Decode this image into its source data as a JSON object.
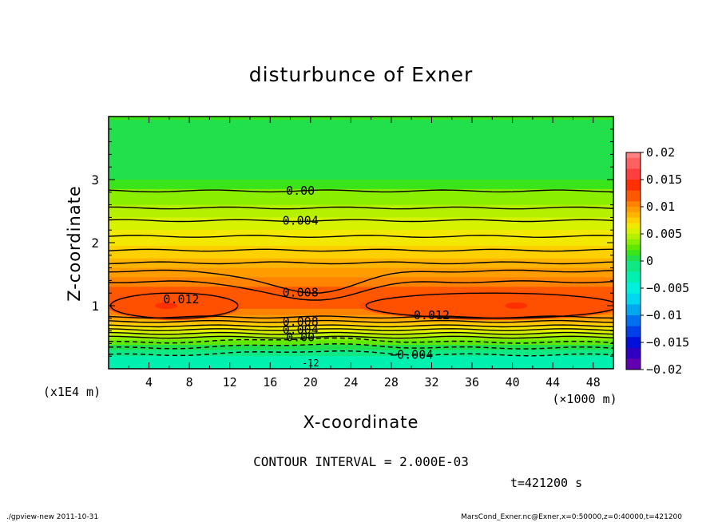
{
  "chart_data": {
    "type": "heatmap",
    "title": "disturbunce of Exner",
    "xlabel": "X-coordinate",
    "ylabel": "Z-coordinate",
    "x_unit": "(×1000 m)",
    "y_unit": "(x1E4 m)",
    "x_ticks": [
      4,
      8,
      12,
      16,
      20,
      24,
      28,
      32,
      36,
      40,
      44,
      48
    ],
    "y_ticks": [
      1,
      2,
      3
    ],
    "xlim": [
      0,
      50
    ],
    "ylim": [
      0,
      4
    ],
    "colorbar": {
      "ticks": [
        "0.02",
        "0.015",
        "0.01",
        "0.005",
        "0",
        "−0.005",
        "−0.01",
        "−0.015",
        "−0.02"
      ],
      "range": [
        -0.02,
        0.02
      ],
      "levels": [
        {
          "from": 0.019,
          "color": "#ff8080"
        },
        {
          "from": 0.017,
          "color": "#ff6060"
        },
        {
          "from": 0.015,
          "color": "#ff3f3f"
        },
        {
          "from": 0.013,
          "color": "#ff2f00"
        },
        {
          "from": 0.011,
          "color": "#ff5800"
        },
        {
          "from": 0.01,
          "color": "#ff8200"
        },
        {
          "from": 0.009,
          "color": "#ff9c00"
        },
        {
          "from": 0.008,
          "color": "#ffb400"
        },
        {
          "from": 0.007,
          "color": "#ffd000"
        },
        {
          "from": 0.006,
          "color": "#f3e800"
        },
        {
          "from": 0.005,
          "color": "#d6f200"
        },
        {
          "from": 0.004,
          "color": "#b4f000"
        },
        {
          "from": 0.003,
          "color": "#8aee00"
        },
        {
          "from": 0.002,
          "color": "#5fe800"
        },
        {
          "from": 0.001,
          "color": "#3ae41a"
        },
        {
          "from": 0.0,
          "color": "#22e04c"
        },
        {
          "from": -0.002,
          "color": "#10e884"
        },
        {
          "from": -0.004,
          "color": "#00f0b0"
        },
        {
          "from": -0.006,
          "color": "#00f0dc"
        },
        {
          "from": -0.008,
          "color": "#00d8f0"
        },
        {
          "from": -0.01,
          "color": "#00a8f0"
        },
        {
          "from": -0.012,
          "color": "#0070f0"
        },
        {
          "from": -0.014,
          "color": "#0040e8"
        },
        {
          "from": -0.016,
          "color": "#0010d8"
        },
        {
          "from": -0.018,
          "color": "#3000c0"
        },
        {
          "from": -0.02,
          "color": "#6000b0"
        }
      ]
    },
    "bands": [
      {
        "z": 3.95,
        "value": 0.001
      },
      {
        "z": 3.4,
        "value": 0.0008
      },
      {
        "z": 3.0,
        "value": 0.0
      },
      {
        "z": 2.85,
        "value": 0.0015
      },
      {
        "z": 2.6,
        "value": 0.003
      },
      {
        "z": 2.4,
        "value": 0.004
      },
      {
        "z": 2.2,
        "value": 0.005
      },
      {
        "z": 1.95,
        "value": 0.006
      },
      {
        "z": 1.75,
        "value": 0.007
      },
      {
        "z": 1.6,
        "value": 0.008
      },
      {
        "z": 1.45,
        "value": 0.009
      },
      {
        "z": 1.3,
        "value": 0.01
      },
      {
        "z": 1.15,
        "value": 0.011
      },
      {
        "z": 0.95,
        "value": 0.012
      },
      {
        "z": 0.85,
        "value": 0.01
      },
      {
        "z": 0.78,
        "value": 0.009
      },
      {
        "z": 0.72,
        "value": 0.008
      },
      {
        "z": 0.66,
        "value": 0.007
      },
      {
        "z": 0.6,
        "value": 0.006
      },
      {
        "z": 0.55,
        "value": 0.005
      },
      {
        "z": 0.5,
        "value": 0.004
      },
      {
        "z": 0.45,
        "value": 0.003
      },
      {
        "z": 0.38,
        "value": 0.002
      },
      {
        "z": 0.3,
        "value": 0.0
      },
      {
        "z": 0.2,
        "value": -0.002
      },
      {
        "z": 0.12,
        "value": -0.004
      }
    ],
    "contours": [
      {
        "z": 2.82,
        "style": "solid",
        "label": "0.00",
        "label_x": 19
      },
      {
        "z": 2.55,
        "style": "solid"
      },
      {
        "z": 2.35,
        "style": "solid",
        "label": "0.004",
        "label_x": 19
      },
      {
        "z": 2.1,
        "style": "solid"
      },
      {
        "z": 1.88,
        "style": "solid"
      },
      {
        "z": 1.68,
        "style": "solid"
      },
      {
        "z": 1.55,
        "style": "solid",
        "label": "0.008",
        "label_x": 19,
        "dip": 0.35
      },
      {
        "z": 1.38,
        "style": "solid",
        "dip": 0.3
      },
      {
        "z": 0.82,
        "style": "solid"
      },
      {
        "z": 0.75,
        "style": "solid",
        "label": "0.008",
        "label_x": 19
      },
      {
        "z": 0.68,
        "style": "solid"
      },
      {
        "z": 0.62,
        "style": "solid",
        "label": "0.004",
        "label_x": 19
      },
      {
        "z": 0.56,
        "style": "solid"
      },
      {
        "z": 0.5,
        "style": "solid",
        "label": "0.00",
        "label_x": 19
      },
      {
        "z": 0.42,
        "style": "dashed"
      },
      {
        "z": 0.33,
        "style": "dashed"
      },
      {
        "z": 0.22,
        "style": "dashed",
        "label": "−0.004",
        "label_x": 30
      }
    ],
    "closed_contours": [
      {
        "cx": 6.5,
        "cz": 1.0,
        "rx": 6.3,
        "rz": 0.2,
        "label": "0.012",
        "label_x": 7.2,
        "label_z": 1.1
      },
      {
        "cx": 38.0,
        "cz": 1.0,
        "rx": 12.5,
        "rz": 0.2,
        "label": "0.012",
        "label_x": 32.0,
        "label_z": 0.85
      }
    ],
    "annotation_bottom": "-12",
    "contour_interval": "CONTOUR INTERVAL = 2.000E-03",
    "time": "t=421200 s",
    "footer_left": "./gpview-new 2011-10-31",
    "footer_right": "MarsCond_Exner.nc@Exner,x=0:50000,z=0:40000,t=421200"
  }
}
